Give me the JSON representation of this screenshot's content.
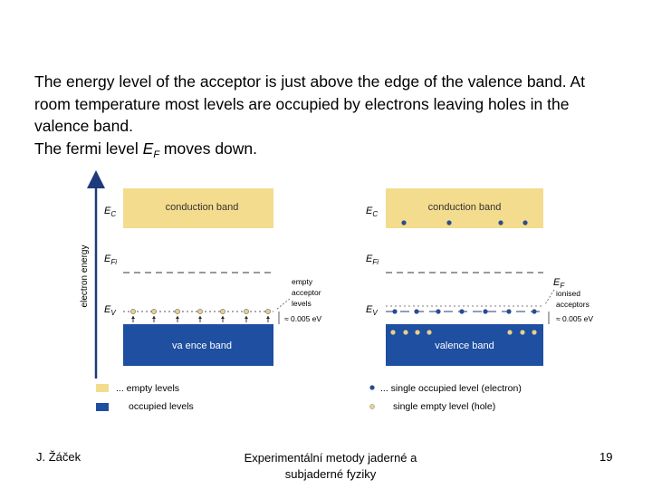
{
  "slide": {
    "lines": [
      "The energy level of the acceptor is just above the edge of the valence band. At",
      "room temperature most levels are occupied by electrons leaving holes in the",
      "valence band."
    ],
    "fermi_line_prefix": "The fermi level ",
    "fermi_symbol": "E",
    "fermi_subscript": "F",
    "fermi_line_suffix": " moves down."
  },
  "diagram": {
    "axis_label": "electron energy",
    "left_panel": {
      "conduction_label": "conduction band",
      "valence_label": "va ence band",
      "ec_label": "E",
      "ec_sub": "C",
      "efi_label": "E",
      "efi_sub": "Fi",
      "ev_label": "E",
      "ev_sub": "V",
      "annotation_lines": [
        "empty",
        "acceptor",
        "levels"
      ],
      "energy_note": "≈ 0.005 eV"
    },
    "right_panel": {
      "conduction_label": "conduction band",
      "valence_label": "valence band",
      "ec_label": "E",
      "ec_sub": "C",
      "efi_label": "E",
      "efi_sub": "Fi",
      "ev_label": "E",
      "ev_sub": "V",
      "ef_label": "E",
      "ef_sub": "F",
      "annotation_lines": [
        "ionised",
        "acceptors"
      ],
      "energy_note": "≈ 0.005 eV"
    },
    "legend": {
      "empty_levels": "... empty levels",
      "occupied_levels": "occupied levels",
      "single_occupied": "... single occupied level (electron)",
      "single_empty": "single empty level (hole)"
    },
    "colors": {
      "conduction": "#f3dc8e",
      "valence": "#1e4fa0",
      "axis": "#1f3a7a",
      "dot": "#2a4b8f",
      "hole": "#e9d08a"
    }
  },
  "footer": {
    "author": "J. Žáček",
    "course_line1": "Experimentální metody jaderné a",
    "course_line2": "subjaderné fyziky",
    "page": "19"
  }
}
